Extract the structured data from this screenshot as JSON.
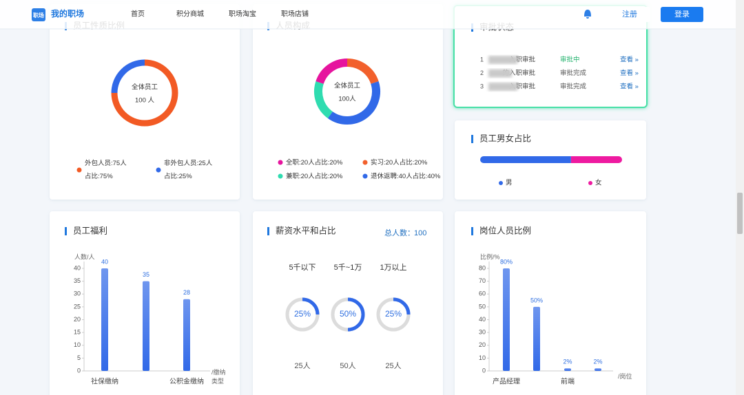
{
  "nav": {
    "logo": "职场",
    "brand": "我的职场",
    "links": [
      "首页",
      "积分商城",
      "职场淘宝",
      "职场店铺"
    ],
    "register": "注册",
    "login": "登录"
  },
  "approval": {
    "title": "审批状态",
    "rows": [
      {
        "index": 1,
        "name": "入职审批",
        "status": "审批中",
        "action": "查看 »"
      },
      {
        "index": 2,
        "name": "的入职审批",
        "status": "审批完成",
        "action": "查看 »"
      },
      {
        "index": 3,
        "name": "入职审批",
        "status": "审批完成",
        "action": "查看 »"
      }
    ]
  },
  "chart_data": [
    {
      "type": "donut",
      "title": "员工性质比例",
      "center_label": "全体员工",
      "total": 100,
      "total_label": "100 人",
      "categories": [
        "外包人员:75人占比:75%",
        "非外包人员:25人占比:25%"
      ],
      "values": [
        75,
        25
      ],
      "colors": [
        "#f25a24",
        "#3169e8"
      ]
    },
    {
      "type": "donut",
      "title": "人员构成",
      "center_label": "全体员工",
      "total": 100,
      "total_label": "100人",
      "categories": [
        "全职:20人占比:20%",
        "实习:20人占比:20%",
        "兼职:20人占比:20%",
        "退休返聘:40人占比:40%"
      ],
      "values": [
        20,
        20,
        20,
        40
      ],
      "colors": [
        "#e6149e",
        "#f2602c",
        "#2fdcb0",
        "#3169e8"
      ]
    },
    {
      "type": "stacked_bar_h",
      "title": "员工男女占比",
      "series": [
        {
          "name": "男",
          "color": "#3169e8",
          "values": [
            64
          ]
        },
        {
          "name": "女",
          "color": "#ee1aa0",
          "values": [
            36
          ]
        }
      ]
    },
    {
      "type": "bar",
      "title": "员工福利",
      "y_label": "人数/人",
      "x_label": "/缴纳类型",
      "categories": [
        "社保缴纳",
        null,
        "公积金缴纳"
      ],
      "values": [
        40,
        35,
        28
      ],
      "ylim": [
        0,
        40
      ],
      "yticks": [
        0,
        5,
        10,
        15,
        20,
        25,
        30,
        35,
        40
      ],
      "color": "#3169e8"
    },
    {
      "type": "rings",
      "title": "薪资水平和占比",
      "total_label": "总人数：",
      "total": 100,
      "categories": [
        "5千以下",
        "5千~1万",
        "1万以上"
      ],
      "values": [
        25,
        50,
        25
      ],
      "value_labels": [
        "25%",
        "50%",
        "25%"
      ],
      "counts": [
        25,
        50,
        25
      ],
      "count_labels": [
        "25人",
        "50人",
        "25人"
      ],
      "color": "#3169e8"
    },
    {
      "type": "bar",
      "title": "岗位人员比例",
      "y_label": "比例/%",
      "x_label": "/岗位",
      "categories": [
        "产品经理",
        null,
        "前端",
        null
      ],
      "values": [
        80,
        50,
        2,
        2
      ],
      "value_labels": [
        "80%",
        "50%",
        "2%",
        "2%"
      ],
      "ylim": [
        0,
        80
      ],
      "yticks": [
        0,
        10,
        20,
        30,
        40,
        50,
        60,
        70,
        80
      ],
      "color": "#3169e8"
    }
  ]
}
